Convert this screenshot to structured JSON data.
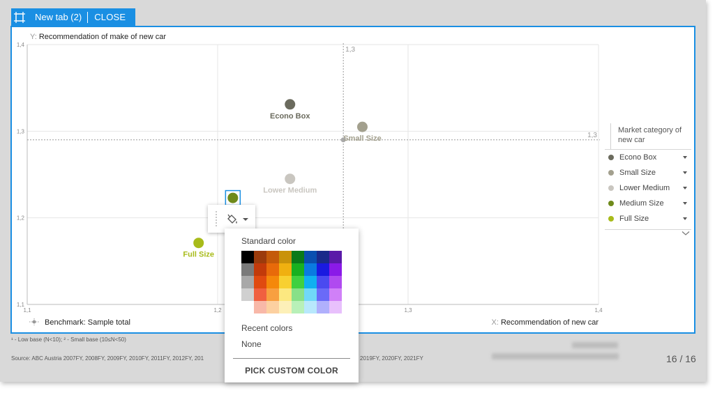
{
  "tab": {
    "icon": "select-frame-icon",
    "title": "New tab (2)",
    "close_label": "CLOSE"
  },
  "chart_data": {
    "type": "scatter",
    "y_axis_title_prefix": "Y:",
    "y_axis_title": "Recommendation of make of new car",
    "x_axis_title_prefix": "X:",
    "x_axis_title": "Recommendation of new car",
    "xlim": [
      1.1,
      1.4
    ],
    "ylim": [
      1.1,
      1.4
    ],
    "x_tick_labels": [
      "1,1",
      "1,2",
      "1,3",
      "1,4"
    ],
    "y_tick_labels": [
      "1,1",
      "1,2",
      "1,3",
      "1,4"
    ],
    "grid": true,
    "benchmark": {
      "x": 1.266,
      "y": 1.29,
      "x_label": "1,3",
      "y_label": "1,3"
    },
    "benchmark_legend": "Benchmark: Sample total",
    "legend_position": "right",
    "legend_title": "Market category of new car",
    "points": [
      {
        "name": "Econo Box",
        "x": 1.238,
        "y": 1.331,
        "color": "#6b6b5e",
        "label": "Econo Box"
      },
      {
        "name": "Small Size",
        "x": 1.276,
        "y": 1.305,
        "color": "#a3a08e",
        "label": "Small Size"
      },
      {
        "name": "Lower Medium",
        "x": 1.238,
        "y": 1.245,
        "color": "#c9c6c0",
        "label": "Lower Medium"
      },
      {
        "name": "Medium Size",
        "x": 1.208,
        "y": 1.223,
        "color": "#6f8a1b",
        "label": ""
      },
      {
        "name": "Full Size",
        "x": 1.19,
        "y": 1.171,
        "color": "#a8bb1a",
        "label": "Full Size"
      }
    ],
    "selected_point": "Medium Size"
  },
  "legend": {
    "title": "Market category of new car",
    "items": [
      {
        "label": "Econo Box",
        "color": "#6b6b5e"
      },
      {
        "label": "Small Size",
        "color": "#a3a08e"
      },
      {
        "label": "Lower Medium",
        "color": "#c9c6c0"
      },
      {
        "label": "Medium Size",
        "color": "#6f8a1b"
      },
      {
        "label": "Full Size",
        "color": "#a8bb1a"
      }
    ]
  },
  "footnotes": {
    "base_note": "¹ - Low base (N<10);   ² - Small base (10≤N<50)",
    "source_left": "Source: ABC Austria 2007FY, 2008FY, 2009FY, 2010FY, 2011FY, 2012FY, 201",
    "source_right": "2019FY, 2020FY, 2021FY"
  },
  "page_number": "16 / 16",
  "format_toolbar": {
    "icon": "paint-bucket-icon"
  },
  "color_picker": {
    "standard_label": "Standard color",
    "standard_colors": [
      [
        "#000000",
        "#9b3b0c",
        "#c45a0a",
        "#c9920a",
        "#0a7a1a",
        "#0a4fb0",
        "#1a2a8a",
        "#5a1aa8"
      ],
      [
        "#7a7a7a",
        "#c23a0a",
        "#e86a0a",
        "#f0b010",
        "#18b020",
        "#0a7ae0",
        "#1a1ae0",
        "#8a1ae8"
      ],
      [
        "#a8a8a8",
        "#e04a10",
        "#f5880a",
        "#f8d030",
        "#40d040",
        "#10b0f0",
        "#4a4af0",
        "#b04af0"
      ],
      [
        "#d0d0d0",
        "#f06040",
        "#f8a040",
        "#fce880",
        "#88e088",
        "#70d8f8",
        "#6a6af8",
        "#d080f8"
      ],
      [
        "#ffffff",
        "#f8b8a8",
        "#fcd0a0",
        "#fdf0b8",
        "#b8f0b8",
        "#b8e8fc",
        "#b0b0fc",
        "#e8c0fc"
      ]
    ],
    "recent_label": "Recent colors",
    "recent_value": "None",
    "custom_label": "PICK CUSTOM COLOR"
  }
}
